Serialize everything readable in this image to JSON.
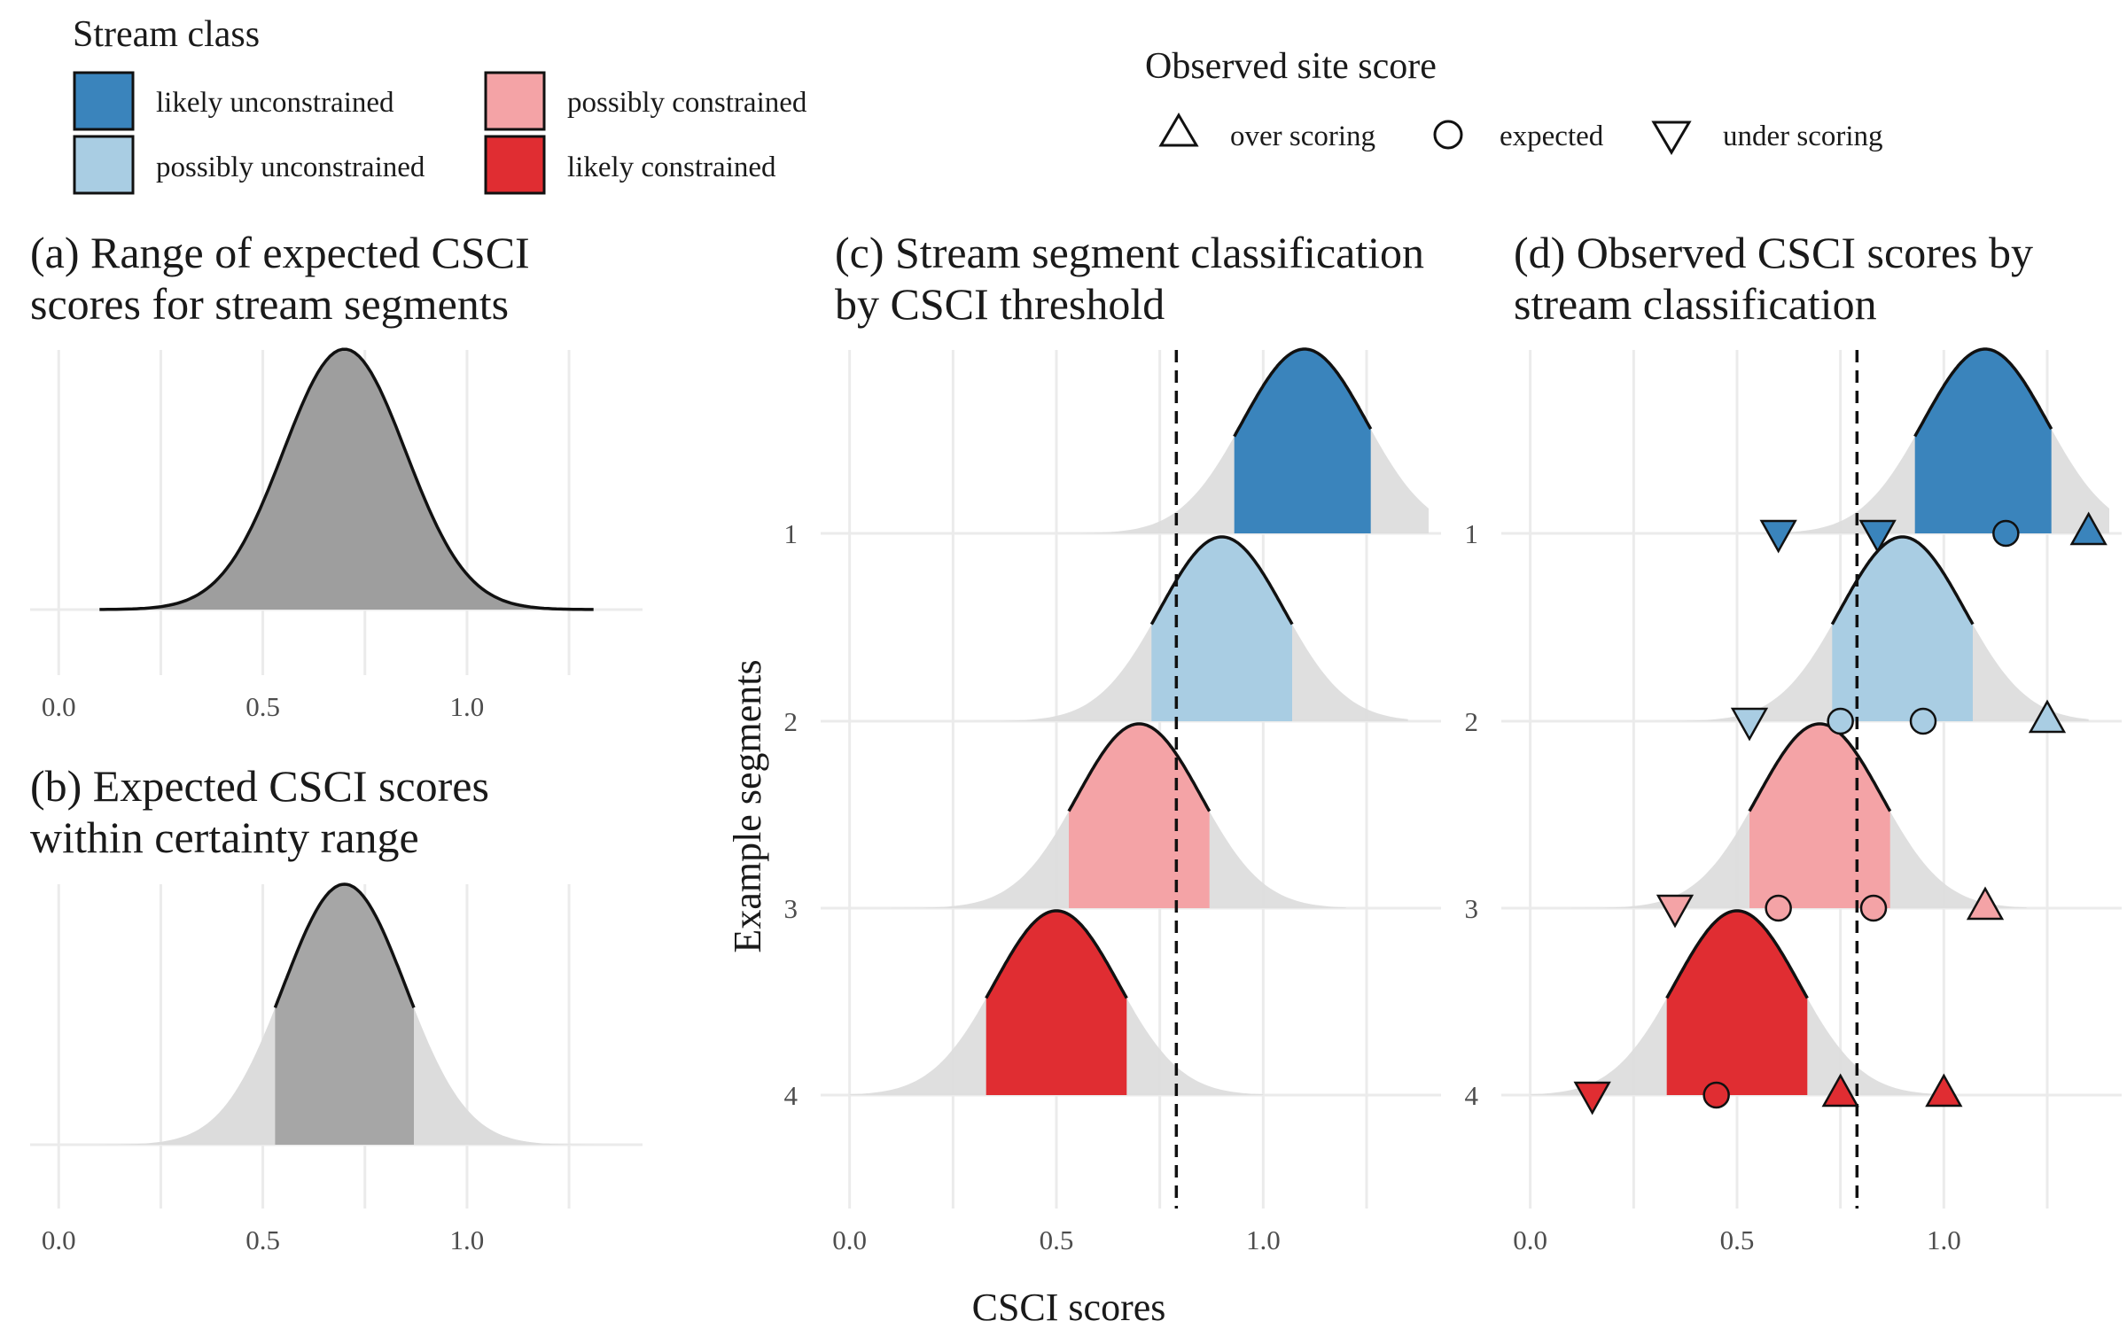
{
  "colors": {
    "likely_unconstrained": "#3a84bc",
    "possibly_unconstrained": "#a9cde3",
    "possibly_constrained": "#f4a3a6",
    "likely_constrained": "#e02d32",
    "full_range": "#dcdcdc",
    "panel_a_fill": "#9e9e9e",
    "panel_b_fill": "#a6a6a6",
    "grid": "#ebebeb"
  },
  "legend_stream": {
    "title": "Stream class",
    "items": [
      {
        "key": "likely_unconstrained",
        "label": "likely unconstrained"
      },
      {
        "key": "possibly_unconstrained",
        "label": "possibly unconstrained"
      },
      {
        "key": "possibly_constrained",
        "label": "possibly constrained"
      },
      {
        "key": "likely_constrained",
        "label": "likely constrained"
      }
    ]
  },
  "legend_observed": {
    "title": "Observed site score",
    "items": [
      {
        "shape": "triangle-up-icon",
        "label": "over scoring"
      },
      {
        "shape": "circle-icon",
        "label": "expected"
      },
      {
        "shape": "triangle-down-icon",
        "label": "under scoring"
      }
    ]
  },
  "axis": {
    "x_title": "CSCI scores",
    "y_title": "Example segments",
    "x_ticks": [
      "0.0",
      "0.5",
      "1.0"
    ],
    "y_ticks": [
      "1",
      "2",
      "3",
      "4"
    ]
  },
  "chart_data": [
    {
      "type": "area",
      "panel": "a",
      "title_lines": [
        "(a) Range of expected CSCI",
        "scores for stream segments"
      ],
      "xlim": [
        -0.07,
        1.43
      ],
      "distribution": {
        "mean": 0.7,
        "sd": 0.15,
        "range": [
          0.1,
          1.31
        ]
      }
    },
    {
      "type": "area",
      "panel": "b",
      "title_lines": [
        "(b) Expected CSCI scores",
        "within certainty range"
      ],
      "xlim": [
        -0.07,
        1.43
      ],
      "distribution": {
        "mean": 0.7,
        "sd": 0.15,
        "range": [
          0.1,
          1.31
        ],
        "certainty_range": [
          0.53,
          0.87
        ]
      }
    },
    {
      "type": "area",
      "panel": "c",
      "title_lines": [
        "(c) Stream segment classification",
        "by CSCI threshold"
      ],
      "xlim": [
        -0.07,
        1.43
      ],
      "threshold": 0.79,
      "segments": [
        {
          "segment": "1",
          "class": "likely_unconstrained",
          "mean": 1.1,
          "sd": 0.15,
          "range": [
            0.5,
            1.4
          ],
          "certainty_range": [
            0.93,
            1.26
          ]
        },
        {
          "segment": "2",
          "class": "possibly_unconstrained",
          "mean": 0.9,
          "sd": 0.15,
          "range": [
            0.3,
            1.35
          ],
          "certainty_range": [
            0.73,
            1.07
          ]
        },
        {
          "segment": "3",
          "class": "possibly_constrained",
          "mean": 0.7,
          "sd": 0.15,
          "range": [
            0.1,
            1.2
          ],
          "certainty_range": [
            0.53,
            0.87
          ]
        },
        {
          "segment": "4",
          "class": "likely_constrained",
          "mean": 0.5,
          "sd": 0.15,
          "range": [
            0.0,
            1.0
          ],
          "certainty_range": [
            0.33,
            0.67
          ]
        }
      ]
    },
    {
      "type": "scatter",
      "panel": "d",
      "title_lines": [
        "(d) Observed CSCI scores by",
        "stream classification"
      ],
      "xlim": [
        -0.07,
        1.43
      ],
      "threshold": 0.79,
      "segments": [
        {
          "segment": "1",
          "class": "likely_unconstrained",
          "mean": 1.1,
          "sd": 0.15,
          "range": [
            0.5,
            1.4
          ],
          "certainty_range": [
            0.93,
            1.26
          ],
          "observed": [
            {
              "x": 0.6,
              "shape": "under"
            },
            {
              "x": 0.84,
              "shape": "under"
            },
            {
              "x": 1.15,
              "shape": "expected"
            },
            {
              "x": 1.35,
              "shape": "over"
            }
          ]
        },
        {
          "segment": "2",
          "class": "possibly_unconstrained",
          "mean": 0.9,
          "sd": 0.15,
          "range": [
            0.3,
            1.35
          ],
          "certainty_range": [
            0.73,
            1.07
          ],
          "observed": [
            {
              "x": 0.53,
              "shape": "under"
            },
            {
              "x": 0.75,
              "shape": "expected"
            },
            {
              "x": 0.95,
              "shape": "expected"
            },
            {
              "x": 1.25,
              "shape": "over"
            }
          ]
        },
        {
          "segment": "3",
          "class": "possibly_constrained",
          "mean": 0.7,
          "sd": 0.15,
          "range": [
            0.1,
            1.2
          ],
          "certainty_range": [
            0.53,
            0.87
          ],
          "observed": [
            {
              "x": 0.35,
              "shape": "under"
            },
            {
              "x": 0.6,
              "shape": "expected"
            },
            {
              "x": 0.83,
              "shape": "expected"
            },
            {
              "x": 1.1,
              "shape": "over"
            }
          ]
        },
        {
          "segment": "4",
          "class": "likely_constrained",
          "mean": 0.5,
          "sd": 0.15,
          "range": [
            0.0,
            1.0
          ],
          "certainty_range": [
            0.33,
            0.67
          ],
          "observed": [
            {
              "x": 0.15,
              "shape": "under"
            },
            {
              "x": 0.45,
              "shape": "expected"
            },
            {
              "x": 0.75,
              "shape": "over"
            },
            {
              "x": 1.0,
              "shape": "over"
            }
          ]
        }
      ]
    }
  ]
}
